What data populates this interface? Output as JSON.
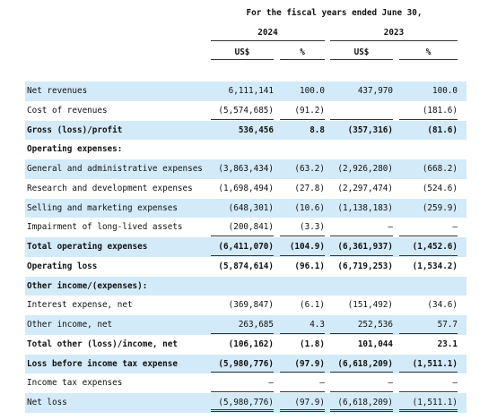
{
  "header": {
    "period": "For the fiscal years ended June 30,",
    "years": [
      "2024",
      "2023"
    ],
    "units": [
      "US$",
      "%",
      "US$",
      "%"
    ]
  },
  "rows": [
    {
      "label": "Net revenues",
      "bold": false,
      "shade": true,
      "cells": [
        "6,111,141",
        "100.0",
        "437,970",
        "100.0"
      ]
    },
    {
      "label": "Cost of revenues",
      "bold": false,
      "shade": false,
      "rule": true,
      "cells": [
        "(5,574,685)",
        "(91.2)",
        null,
        "(181.6)"
      ]
    },
    {
      "label": "Gross (loss)/profit",
      "bold": true,
      "shade": true,
      "cells": [
        "536,456",
        "8.8",
        "(357,316)",
        "(81.6)"
      ]
    },
    {
      "label": "Operating expenses:",
      "bold": true,
      "shade": false,
      "cells": [
        null,
        null,
        null,
        null
      ]
    },
    {
      "label": "General and administrative expenses",
      "bold": false,
      "shade": true,
      "cells": [
        "(3,863,434)",
        "(63.2)",
        "(2,926,280)",
        "(668.2)"
      ]
    },
    {
      "label": "Research and development expenses",
      "bold": false,
      "shade": false,
      "cells": [
        "(1,698,494)",
        "(27.8)",
        "(2,297,474)",
        "(524.6)"
      ]
    },
    {
      "label": "Selling and marketing expenses",
      "bold": false,
      "shade": true,
      "cells": [
        "(648,301)",
        "(10.6)",
        "(1,138,183)",
        "(259.9)"
      ]
    },
    {
      "label": "Impairment of long-lived assets",
      "bold": false,
      "shade": false,
      "rule": true,
      "cells": [
        "(200,841)",
        "(3.3)",
        "—",
        "—"
      ]
    },
    {
      "label": "Total operating expenses",
      "bold": true,
      "shade": true,
      "rule": true,
      "cells": [
        "(6,411,070)",
        "(104.9)",
        "(6,361,937)",
        "(1,452.6)"
      ]
    },
    {
      "label": "Operating loss",
      "bold": true,
      "shade": false,
      "cells": [
        "(5,874,614)",
        "(96.1)",
        "(6,719,253)",
        "(1,534.2)"
      ]
    },
    {
      "label": "Other income/(expenses):",
      "bold": true,
      "shade": true,
      "cells": [
        null,
        null,
        null,
        null
      ]
    },
    {
      "label": "Interest expense, net",
      "bold": false,
      "shade": false,
      "cells": [
        "(369,847)",
        "(6.1)",
        "(151,492)",
        "(34.6)"
      ]
    },
    {
      "label": "Other income, net",
      "bold": false,
      "shade": true,
      "rule": true,
      "cells": [
        "263,685",
        "4.3",
        "252,536",
        "57.7"
      ]
    },
    {
      "label": "Total other (loss)/income, net",
      "bold": true,
      "shade": false,
      "cells": [
        "(106,162)",
        "(1.8)",
        "101,044",
        "23.1"
      ]
    },
    {
      "label": "Loss before income tax expense",
      "bold": true,
      "shade": true,
      "rule": true,
      "cells": [
        "(5,980,776)",
        "(97.9)",
        "(6,618,209)",
        "(1,511.1)"
      ]
    },
    {
      "label": "Income tax expenses",
      "bold": false,
      "shade": false,
      "rule": true,
      "cells": [
        "—",
        "—",
        "—",
        "—"
      ]
    },
    {
      "label": "Net loss",
      "bold": false,
      "shade": true,
      "double": true,
      "cells": [
        "(5,980,776)",
        "(97.9)",
        "(6,618,209)",
        "(1,511.1)"
      ]
    }
  ]
}
